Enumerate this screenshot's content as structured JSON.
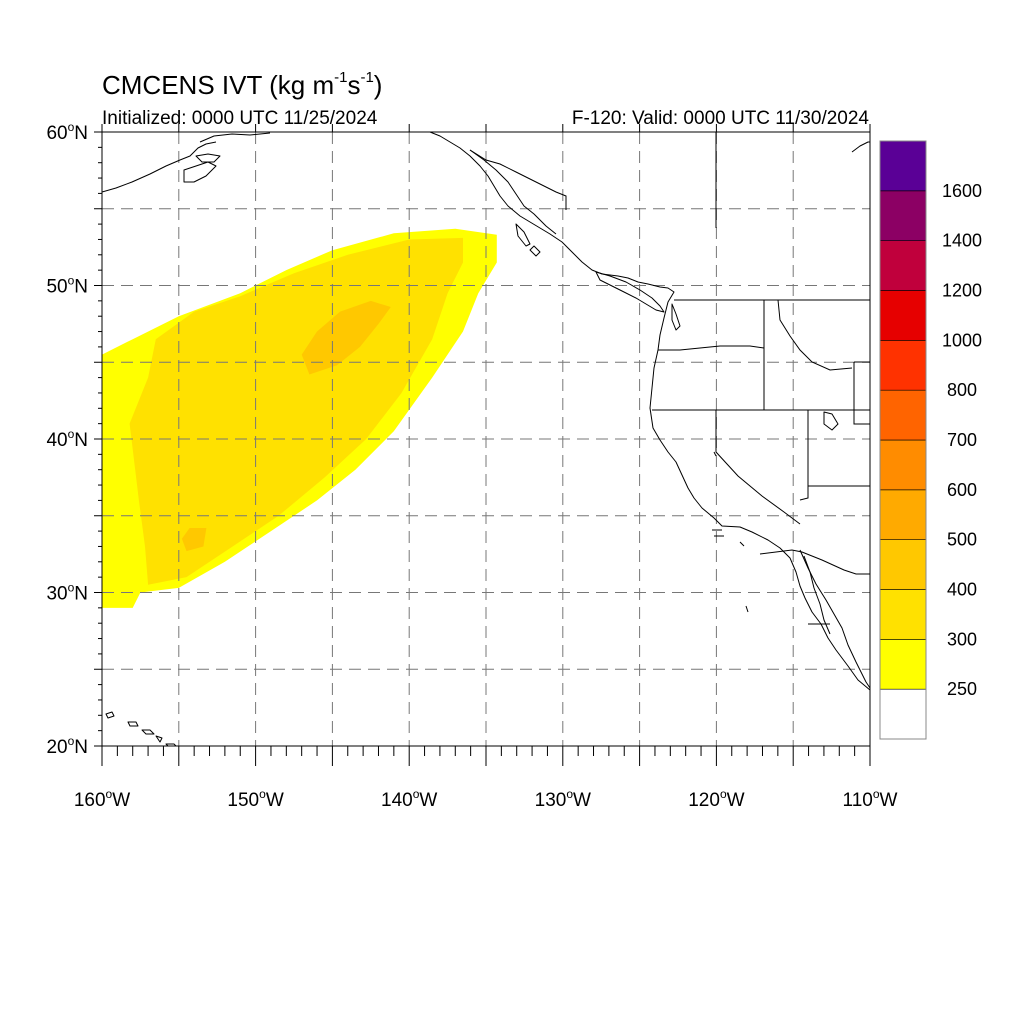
{
  "header": {
    "title_main": "CMCENS IVT (kg m",
    "title_exp1": "-1",
    "title_mid": "s",
    "title_exp2": "-1",
    "title_close": ")",
    "initialized": "Initialized: 0000 UTC 11/25/2024",
    "valid": "F-120: Valid: 0000 UTC 11/30/2024"
  },
  "chart_data": {
    "type": "heatmap",
    "title": "CMCENS IVT (kg m-1 s-1)",
    "subtitle_left": "Initialized: 0000 UTC 11/25/2024",
    "subtitle_right": "F-120: Valid: 0000 UTC 11/30/2024",
    "xlim": [
      -160,
      -110
    ],
    "ylim": [
      20,
      60
    ],
    "grid": true,
    "lon_ticks": [
      {
        "value": -160,
        "label": "160°W"
      },
      {
        "value": -150,
        "label": "150°W"
      },
      {
        "value": -140,
        "label": "140°W"
      },
      {
        "value": -130,
        "label": "130°W"
      },
      {
        "value": -120,
        "label": "120°W"
      },
      {
        "value": -110,
        "label": "110°W"
      }
    ],
    "lat_ticks": [
      {
        "value": 20,
        "label": "20°N"
      },
      {
        "value": 30,
        "label": "30°N"
      },
      {
        "value": 40,
        "label": "40°N"
      },
      {
        "value": 50,
        "label": "50°N"
      },
      {
        "value": 60,
        "label": "60°N"
      }
    ],
    "colorbar": {
      "labels": [
        "250",
        "300",
        "400",
        "500",
        "600",
        "700",
        "800",
        "1000",
        "1200",
        "1400",
        "1600"
      ],
      "colors": [
        "#ffffff",
        "#ffff00",
        "#ffe100",
        "#ffc800",
        "#ffaa00",
        "#ff8c00",
        "#ff6400",
        "#ff3200",
        "#e60000",
        "#c0003c",
        "#8c0064",
        "#5a0096"
      ]
    },
    "features": [
      {
        "name": "ivt-250-300",
        "level": 250,
        "color": "#ffff00",
        "polygon": [
          [
            -160,
            29
          ],
          [
            -158,
            29
          ],
          [
            -157.5,
            30
          ],
          [
            -155,
            30.3
          ],
          [
            -152,
            32
          ],
          [
            -149,
            34
          ],
          [
            -146,
            36
          ],
          [
            -143.5,
            38
          ],
          [
            -141,
            40.5
          ],
          [
            -138.5,
            44
          ],
          [
            -136.5,
            47
          ],
          [
            -135.5,
            49.5
          ],
          [
            -134.3,
            51.5
          ],
          [
            -134.3,
            53.3
          ],
          [
            -137,
            53.7
          ],
          [
            -141,
            53.4
          ],
          [
            -145,
            52.3
          ],
          [
            -148,
            51
          ],
          [
            -151,
            49.5
          ],
          [
            -155,
            48
          ],
          [
            -158,
            46.5
          ],
          [
            -160,
            45.5
          ]
        ]
      },
      {
        "name": "ivt-300-400",
        "level": 300,
        "color": "#ffe100",
        "polygon": [
          [
            -157,
            30.5
          ],
          [
            -154.5,
            31
          ],
          [
            -151.5,
            33
          ],
          [
            -148.5,
            35
          ],
          [
            -145.5,
            37.5
          ],
          [
            -142.8,
            40
          ],
          [
            -140.5,
            43
          ],
          [
            -138.5,
            46.5
          ],
          [
            -137.5,
            49.5
          ],
          [
            -136.5,
            51.5
          ],
          [
            -136.5,
            53.1
          ],
          [
            -140,
            53
          ],
          [
            -144,
            52
          ],
          [
            -147.5,
            50.8
          ],
          [
            -151,
            49.3
          ],
          [
            -154,
            48.3
          ],
          [
            -156.5,
            46.5
          ],
          [
            -157,
            44
          ],
          [
            -158.2,
            41
          ],
          [
            -157.6,
            36
          ],
          [
            -157.2,
            33
          ]
        ]
      },
      {
        "name": "ivt-400-500",
        "level": 400,
        "color": "#ffc800",
        "polygon": [
          [
            -146.5,
            44.2
          ],
          [
            -144.7,
            44.8
          ],
          [
            -143.2,
            46
          ],
          [
            -142,
            47.5
          ],
          [
            -141.2,
            48.6
          ],
          [
            -142.5,
            49
          ],
          [
            -144.5,
            48.3
          ],
          [
            -146,
            47
          ],
          [
            -147,
            45.5
          ]
        ]
      },
      {
        "name": "ivt-400-500-b",
        "level": 400,
        "color": "#ffc800",
        "polygon": [
          [
            -154.5,
            32.7
          ],
          [
            -153.4,
            33
          ],
          [
            -153.2,
            34.2
          ],
          [
            -154.3,
            34.2
          ],
          [
            -154.8,
            33.5
          ]
        ]
      }
    ]
  }
}
